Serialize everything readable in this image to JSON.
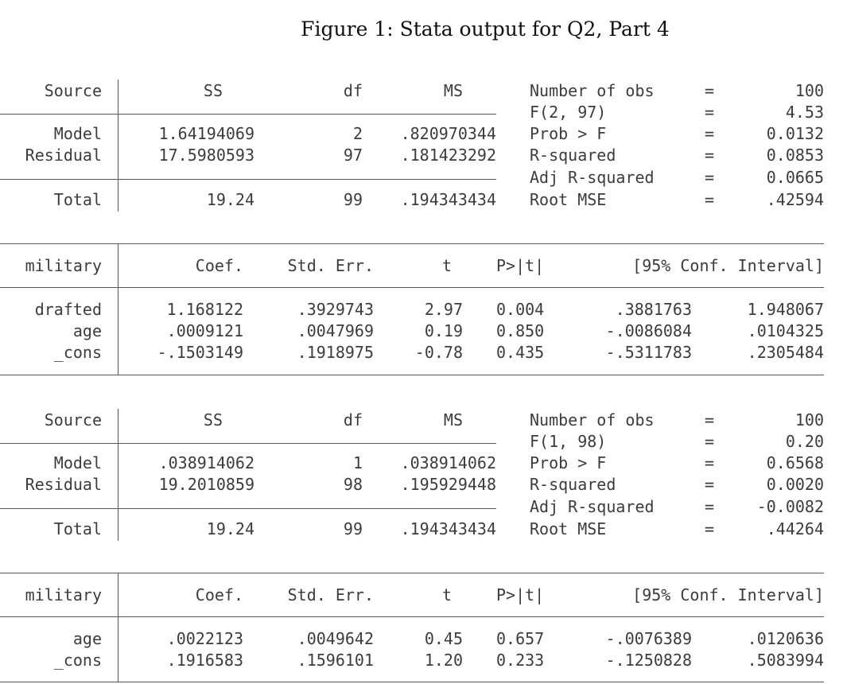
{
  "title": "Figure 1: Stata output for Q2, Part 4",
  "regressions": [
    {
      "anova": {
        "headers": [
          "Source",
          "SS",
          "df",
          "MS"
        ],
        "rows": [
          {
            "source": "Model",
            "ss": "1.64194069",
            "df": "2",
            "ms": ".820970344"
          },
          {
            "source": "Residual",
            "ss": "17.5980593",
            "df": "97",
            "ms": ".181423292"
          }
        ],
        "total": {
          "source": "Total",
          "ss": "19.24",
          "df": "99",
          "ms": ".194343434"
        },
        "stats": [
          {
            "label": "Number of obs",
            "eq": "=",
            "value": "100"
          },
          {
            "label": "F(2, 97)",
            "eq": "=",
            "value": "4.53"
          },
          {
            "label": "Prob > F",
            "eq": "=",
            "value": "0.0132"
          },
          {
            "label": "R-squared",
            "eq": "=",
            "value": "0.0853"
          },
          {
            "label": "Adj R-squared",
            "eq": "=",
            "value": "0.0665"
          },
          {
            "label": "Root MSE",
            "eq": "=",
            "value": ".42594"
          }
        ]
      },
      "coef": {
        "depvar": "military",
        "headers": [
          "Coef.",
          "Std. Err.",
          "t",
          "P>|t|",
          "[95% Conf. Interval]"
        ],
        "rows": [
          {
            "var": "drafted",
            "coef": "1.168122",
            "se": ".3929743",
            "t": "2.97",
            "p": "0.004",
            "lo": ".3881763",
            "hi": "1.948067"
          },
          {
            "var": "age",
            "coef": ".0009121",
            "se": ".0047969",
            "t": "0.19",
            "p": "0.850",
            "lo": "-.0086084",
            "hi": ".0104325"
          },
          {
            "var": "_cons",
            "coef": "-.1503149",
            "se": ".1918975",
            "t": "-0.78",
            "p": "0.435",
            "lo": "-.5311783",
            "hi": ".2305484"
          }
        ]
      }
    },
    {
      "anova": {
        "headers": [
          "Source",
          "SS",
          "df",
          "MS"
        ],
        "rows": [
          {
            "source": "Model",
            "ss": ".038914062",
            "df": "1",
            "ms": ".038914062"
          },
          {
            "source": "Residual",
            "ss": "19.2010859",
            "df": "98",
            "ms": ".195929448"
          }
        ],
        "total": {
          "source": "Total",
          "ss": "19.24",
          "df": "99",
          "ms": ".194343434"
        },
        "stats": [
          {
            "label": "Number of obs",
            "eq": "=",
            "value": "100"
          },
          {
            "label": "F(1, 98)",
            "eq": "=",
            "value": "0.20"
          },
          {
            "label": "Prob > F",
            "eq": "=",
            "value": "0.6568"
          },
          {
            "label": "R-squared",
            "eq": "=",
            "value": "0.0020"
          },
          {
            "label": "Adj R-squared",
            "eq": "=",
            "value": "-0.0082"
          },
          {
            "label": "Root MSE",
            "eq": "=",
            "value": ".44264"
          }
        ]
      },
      "coef": {
        "depvar": "military",
        "headers": [
          "Coef.",
          "Std. Err.",
          "t",
          "P>|t|",
          "[95% Conf. Interval]"
        ],
        "rows": [
          {
            "var": "age",
            "coef": ".0022123",
            "se": ".0049642",
            "t": "0.45",
            "p": "0.657",
            "lo": "-.0076389",
            "hi": ".0120636"
          },
          {
            "var": "_cons",
            "coef": ".1916583",
            "se": ".1596101",
            "t": "1.20",
            "p": "0.233",
            "lo": "-.1250828",
            "hi": ".5083994"
          }
        ]
      }
    }
  ]
}
